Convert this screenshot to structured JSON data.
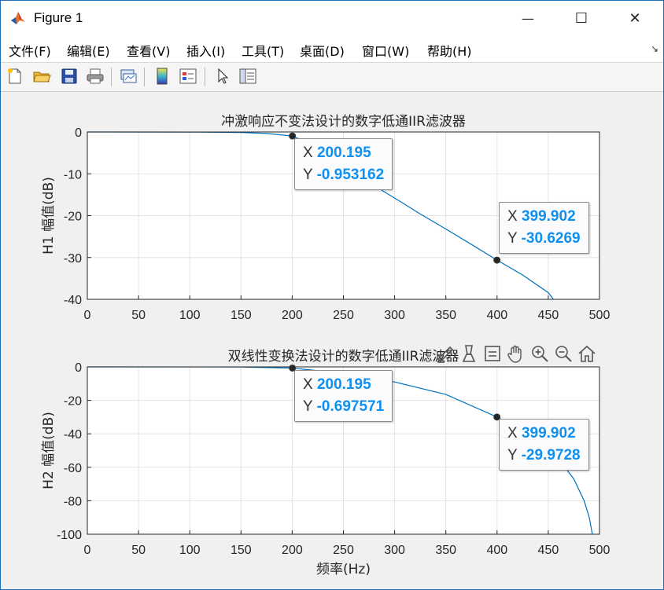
{
  "window": {
    "title": "Figure 1",
    "controls": {
      "minimize": "—",
      "maximize": "☐",
      "close": "✕"
    }
  },
  "menu": [
    "文件(F)",
    "编辑(E)",
    "查看(V)",
    "插入(I)",
    "工具(T)",
    "桌面(D)",
    "窗口(W)",
    "帮助(H)"
  ],
  "toolbar_icons": [
    "new-figure-icon",
    "open-file-icon",
    "save-icon",
    "print-icon",
    "link-plot-icon",
    "colorbar-icon",
    "legend-icon",
    "pointer-icon",
    "property-inspector-icon"
  ],
  "axes_toolbar_icons": [
    "brush-icon",
    "data-tips-icon",
    "rotate-icon",
    "pan-icon",
    "zoom-in-icon",
    "zoom-out-icon",
    "home-icon"
  ],
  "chart_data": [
    {
      "type": "line",
      "title": "冲激响应不变法设计的数字低通IIR滤波器",
      "xlabel": "",
      "ylabel": "H1 幅值(dB)",
      "xlim": [
        0,
        500
      ],
      "ylim": [
        -40,
        0
      ],
      "xticks": [
        0,
        50,
        100,
        150,
        200,
        250,
        300,
        350,
        400,
        450,
        500
      ],
      "yticks": [
        0,
        -10,
        -20,
        -30,
        -40
      ],
      "grid": true,
      "line_color": "#0072bd",
      "x": [
        0,
        100,
        150,
        175,
        200,
        225,
        250,
        275,
        300,
        325,
        350,
        375,
        400,
        425,
        450,
        455
      ],
      "y": [
        0,
        -0.02,
        -0.12,
        -0.35,
        -0.953,
        -3.5,
        -8.0,
        -12.1,
        -15.8,
        -19.6,
        -23.2,
        -26.9,
        -30.627,
        -34.2,
        -38.4,
        -40
      ],
      "datatips": [
        {
          "x": "200.195",
          "y": "-0.953162",
          "xv": 200.195,
          "yv": -0.953162
        },
        {
          "x": "399.902",
          "y": "-30.6269",
          "xv": 399.902,
          "yv": -30.6269
        }
      ]
    },
    {
      "type": "line",
      "title": "双线性变换法设计的数字低通IIR滤波器",
      "xlabel": "频率(Hz)",
      "ylabel": "H2 幅值(dB)",
      "xlim": [
        0,
        500
      ],
      "ylim": [
        -100,
        0
      ],
      "xticks": [
        0,
        50,
        100,
        150,
        200,
        250,
        300,
        350,
        400,
        450,
        500
      ],
      "yticks": [
        0,
        -20,
        -40,
        -60,
        -80,
        -100
      ],
      "grid": true,
      "line_color": "#0072bd",
      "x": [
        0,
        150,
        200,
        250,
        300,
        350,
        400,
        425,
        450,
        465,
        475,
        485,
        490,
        493
      ],
      "y": [
        0,
        -0.05,
        -0.698,
        -3.8,
        -9.0,
        -16.5,
        -29.973,
        -38.5,
        -50,
        -59,
        -67,
        -80,
        -90,
        -100
      ],
      "datatips": [
        {
          "x": "200.195",
          "y": "-0.697571",
          "xv": 200.195,
          "yv": -0.697571
        },
        {
          "x": "399.902",
          "y": "-29.9728",
          "xv": 399.902,
          "yv": -29.9728
        }
      ]
    }
  ]
}
